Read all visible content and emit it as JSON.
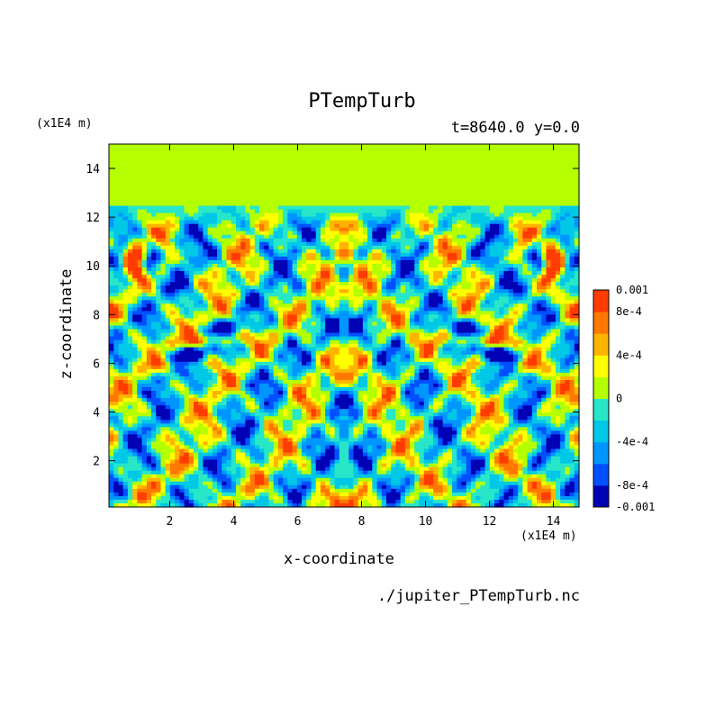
{
  "chart_data": {
    "type": "heatmap",
    "title": "PTempTurb",
    "subtitle": "t=8640.0 y=0.0",
    "xlabel": "x-coordinate",
    "ylabel": "z-coordinate",
    "x_unit": "(x1E4 m)",
    "y_unit": "(x1E4 m)",
    "source_file": "./jupiter_PTempTurb.nc",
    "xlim": [
      0.1,
      14.8
    ],
    "ylim": [
      0.1,
      15.0
    ],
    "x_ticks": [
      2,
      4,
      6,
      8,
      10,
      12,
      14
    ],
    "y_ticks": [
      2,
      4,
      6,
      8,
      10,
      12,
      14
    ],
    "colorbar": {
      "range": [
        -0.001,
        0.001
      ],
      "levels": [
        -0.001,
        -0.0008,
        -0.0006,
        -0.0004,
        -0.0002,
        0,
        0.0002,
        0.0004,
        0.0006,
        0.0008,
        0.001
      ],
      "colors": [
        "#0000b4",
        "#0050ff",
        "#0096ff",
        "#00c8e6",
        "#28e6c8",
        "#b4ff00",
        "#ffff00",
        "#ffb400",
        "#ff7800",
        "#ff3c00"
      ],
      "labels": [
        {
          "value": 0.001,
          "text": "0.001"
        },
        {
          "value": 0.0008,
          "text": "8e-4"
        },
        {
          "value": 0.0004,
          "text": "4e-4"
        },
        {
          "value": 0,
          "text": "0"
        },
        {
          "value": -0.0004,
          "text": "-4e-4"
        },
        {
          "value": -0.0008,
          "text": "-8e-4"
        },
        {
          "value": -0.001,
          "text": "-0.001"
        }
      ]
    },
    "field_description": {
      "calm_top_value": 0.0001,
      "calm_top_from_z": 12.5,
      "symmetric_about_x": 7.45
    }
  }
}
